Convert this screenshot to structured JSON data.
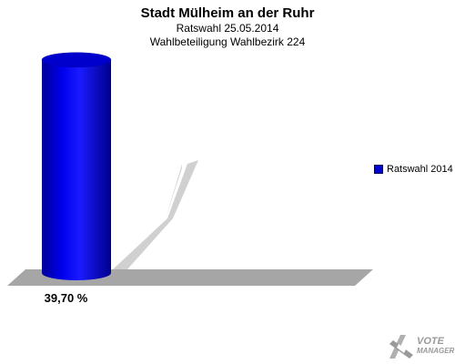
{
  "header": {
    "title": "Stadt Mülheim an der Ruhr",
    "subtitle1": "Ratswahl 25.05.2014",
    "subtitle2": "Wahlbeteiligung Wahlbezirk 224"
  },
  "chart_data": {
    "type": "bar",
    "categories": [
      "Ratswahl 2014"
    ],
    "series": [
      {
        "name": "Ratswahl 2014",
        "values": [
          39.7
        ]
      }
    ],
    "data_labels": [
      "39,70 %"
    ],
    "ylim": [
      0,
      100
    ],
    "legend": "right",
    "grid": false,
    "colors": {
      "bar": "#0000dd",
      "bar_dark": "#000088",
      "floor": "#a6a6a6"
    }
  },
  "legend": {
    "items": [
      {
        "label": "Ratswahl 2014",
        "color": "#0000cc"
      }
    ]
  },
  "logo": {
    "line1": "VOTE",
    "line2": "MANAGER"
  }
}
